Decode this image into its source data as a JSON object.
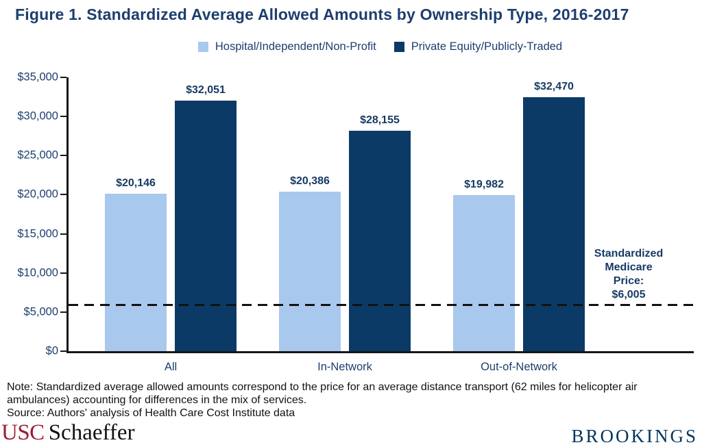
{
  "figure": {
    "title": "Figure 1. Standardized Average Allowed Amounts by Ownership Type, 2016-2017"
  },
  "chart_data": {
    "type": "bar",
    "title": "Figure 1. Standardized Average Allowed Amounts by Ownership Type, 2016-2017",
    "categories": [
      "All",
      "In-Network",
      "Out-of-Network"
    ],
    "series": [
      {
        "name": "Hospital/Independent/Non-Profit",
        "color": "#a9c8ed",
        "values": [
          20146,
          20386,
          19982
        ],
        "labels": [
          "$20,146",
          "$20,386",
          "$19,982"
        ]
      },
      {
        "name": "Private Equity/Publicly-Traded",
        "color": "#0b3a66",
        "values": [
          32051,
          28155,
          32470
        ],
        "labels": [
          "$32,051",
          "$28,155",
          "$32,470"
        ]
      }
    ],
    "xlabel": "",
    "ylabel": "",
    "ylim": [
      0,
      35000
    ],
    "y_tick_step": 5000,
    "y_tick_labels": [
      "$0",
      "$5,000",
      "$10,000",
      "$15,000",
      "$20,000",
      "$25,000",
      "$30,000",
      "$35,000"
    ],
    "grid": false,
    "legend_position": "top",
    "reference_line": {
      "value": 6005,
      "label": "Standardized\nMedicare Price:\n$6,005"
    }
  },
  "notes": {
    "note": "Note: Standardized average allowed amounts correspond to the price for an average distance transport (62 miles for helicopter air ambulances) accounting for differences in the mix of services.",
    "source": "Source: Authors' analysis of Health Care Cost Institute data"
  },
  "footer": {
    "usc": "USC",
    "schaeffer": "Schaeffer",
    "brookings": "BROOKINGS"
  },
  "colors": {
    "text_navy": "#1d3e6e",
    "value_label_navy": "#173a63",
    "bar_light": "#a9c8ed",
    "bar_dark": "#0b3a66",
    "axis_black": "#161616",
    "usc_cardinal": "#9a1c36",
    "brookings_navy": "#00355f"
  }
}
